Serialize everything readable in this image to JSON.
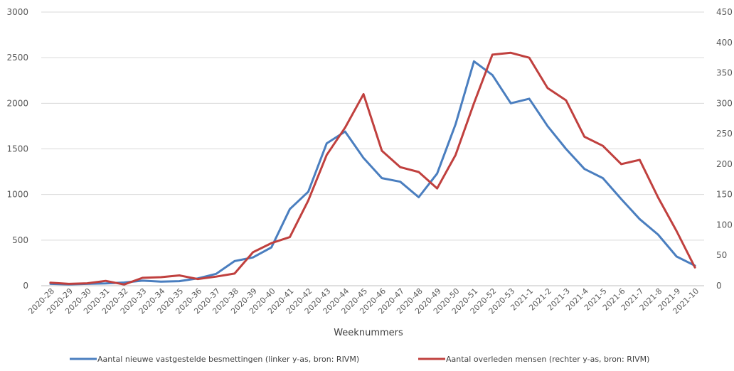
{
  "chart_data": {
    "type": "line",
    "xlabel": "Weeknummers",
    "categories": [
      "2020-28",
      "2020-29",
      "2020-30",
      "2020-31",
      "2020-32",
      "2020-33",
      "2020-34",
      "2020-35",
      "2020-36",
      "2020-37",
      "2020-38",
      "2020-39",
      "2020-40",
      "2020-41",
      "2020-42",
      "2020-43",
      "2020-44",
      "2020-45",
      "2020-46",
      "2020-47",
      "2020-48",
      "2020-49",
      "2020-50",
      "2020-51",
      "2020-52",
      "2020-53",
      "2021-1",
      "2021-2",
      "2021-3",
      "2021-4",
      "2021-5",
      "2021-6",
      "2021-7",
      "2021-8",
      "2021-9",
      "2021-10"
    ],
    "y_left": {
      "ylim": [
        0,
        3000
      ],
      "ticks": [
        0,
        500,
        1000,
        1500,
        2000,
        2500,
        3000
      ]
    },
    "y_right": {
      "ylim": [
        0,
        450
      ],
      "ticks": [
        0,
        50,
        100,
        150,
        200,
        250,
        300,
        350,
        400,
        450
      ]
    },
    "grid": true,
    "legend_position": "bottom",
    "series": [
      {
        "name": "Aantal nieuwe vastgestelde besmettingen  (linker y-as, bron: RIVM)",
        "axis": "left",
        "color": "#4a7ebf",
        "values": [
          20,
          15,
          20,
          25,
          35,
          55,
          45,
          50,
          80,
          130,
          270,
          310,
          420,
          840,
          1030,
          1560,
          1690,
          1400,
          1180,
          1140,
          970,
          1230,
          1770,
          2460,
          2310,
          2000,
          2050,
          1750,
          1500,
          1280,
          1180,
          950,
          730,
          560,
          320,
          220
        ]
      },
      {
        "name": "Aantal overleden mensen  (rechter y-as, bron: RIVM)",
        "axis": "right",
        "color": "#c0403e",
        "values": [
          5,
          3,
          4,
          8,
          2,
          13,
          14,
          17,
          11,
          15,
          20,
          55,
          70,
          80,
          140,
          215,
          260,
          315,
          222,
          195,
          187,
          160,
          215,
          300,
          380,
          383,
          375,
          325,
          305,
          245,
          230,
          200,
          207,
          145,
          90,
          30
        ]
      }
    ]
  }
}
